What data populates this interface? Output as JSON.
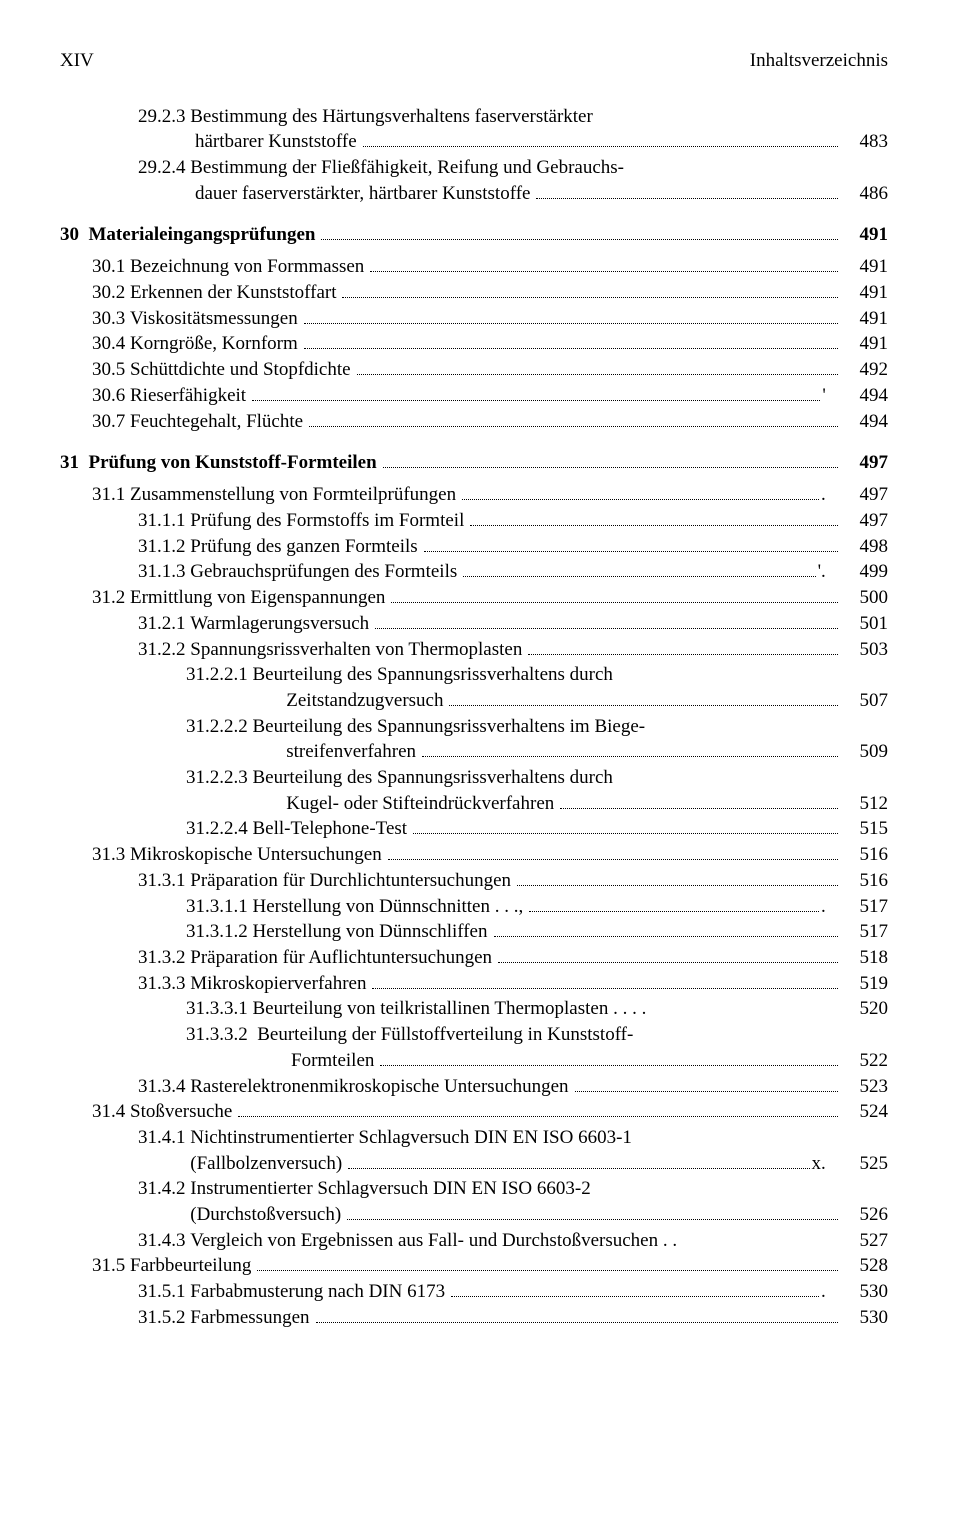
{
  "header": {
    "left": "XIV",
    "right": "Inhaltsverzeichnis"
  },
  "lines": [
    {
      "type": "entry",
      "indent": 2,
      "label": "29.2.3 ",
      "text": "Bestimmung des Härtungsverhaltens faserverstärkter",
      "nopage": true
    },
    {
      "type": "entry",
      "indent": 2,
      "label": "",
      "text": "härtbarer Kunststoffe",
      "contpad": "            ",
      "page": "483"
    },
    {
      "type": "entry",
      "indent": 2,
      "label": "29.2.4 ",
      "text": "Bestimmung der Fließfähigkeit, Reifung und Gebrauchs-",
      "nopage": true
    },
    {
      "type": "entry",
      "indent": 2,
      "label": "",
      "text": "dauer faserverstärkter, härtbarer Kunststoffe",
      "contpad": "            ",
      "page": "486"
    },
    {
      "type": "gap",
      "size": "md"
    },
    {
      "type": "entry",
      "indent": 0,
      "label": "30  ",
      "text": "Materialeingangsprüfungen",
      "page": "491",
      "bold": true
    },
    {
      "type": "gap",
      "size": "sm"
    },
    {
      "type": "entry",
      "indent": 1,
      "label": "30.1 ",
      "text": "Bezeichnung von Formmassen",
      "page": "491"
    },
    {
      "type": "entry",
      "indent": 1,
      "label": "30.2 ",
      "text": "Erkennen der Kunststoffart",
      "page": "491"
    },
    {
      "type": "entry",
      "indent": 1,
      "label": "30.3 ",
      "text": "Viskositätsmessungen",
      "page": "491"
    },
    {
      "type": "entry",
      "indent": 1,
      "label": "30.4 ",
      "text": "Korngröße, Kornform",
      "page": "491"
    },
    {
      "type": "entry",
      "indent": 1,
      "label": "30.5 ",
      "text": "Schüttdichte und Stopfdichte",
      "page": "492"
    },
    {
      "type": "entry",
      "indent": 1,
      "label": "30.6 ",
      "text": "Rieserfähigkeit",
      "page": "494",
      "extra": "'"
    },
    {
      "type": "entry",
      "indent": 1,
      "label": "30.7 ",
      "text": "Feuchtegehalt, Flüchte",
      "page": "494"
    },
    {
      "type": "gap",
      "size": "md"
    },
    {
      "type": "entry",
      "indent": 0,
      "label": "31  ",
      "text": "Prüfung von Kunststoff-Formteilen",
      "page": "497",
      "bold": true
    },
    {
      "type": "gap",
      "size": "sm"
    },
    {
      "type": "entry",
      "indent": 1,
      "label": "31.1 ",
      "text": "Zusammenstellung von Formteilprüfungen",
      "page": "497",
      "extra": "."
    },
    {
      "type": "entry",
      "indent": 3,
      "label": "31.1.1 ",
      "text": "Prüfung des Formstoffs im Formteil",
      "page": "497"
    },
    {
      "type": "entry",
      "indent": 3,
      "label": "31.1.2 ",
      "text": "Prüfung des ganzen Formteils",
      "page": "498"
    },
    {
      "type": "entry",
      "indent": 3,
      "label": "31.1.3 ",
      "text": "Gebrauchsprüfungen des Formteils",
      "page": "499",
      "extra": "'."
    },
    {
      "type": "entry",
      "indent": 1,
      "label": "31.2 ",
      "text": "Ermittlung von Eigenspannungen",
      "page": "500"
    },
    {
      "type": "entry",
      "indent": 3,
      "label": "31.2.1 ",
      "text": "Warmlagerungsversuch",
      "page": "501"
    },
    {
      "type": "entry",
      "indent": 3,
      "label": "31.2.2 ",
      "text": "Spannungsrissverhalten von Thermoplasten",
      "page": "503"
    },
    {
      "type": "entry",
      "indent": 4,
      "label": "31.2.2.1 ",
      "text": "Beurteilung des Spannungsrissverhaltens durch",
      "nopage": true
    },
    {
      "type": "entry",
      "indent": 5,
      "label": "",
      "text": "Zeitstandzugversuch",
      "contpad": "           ",
      "page": "507"
    },
    {
      "type": "entry",
      "indent": 4,
      "label": "31.2.2.2 ",
      "text": "Beurteilung des Spannungsrissverhaltens im Biege-",
      "nopage": true
    },
    {
      "type": "entry",
      "indent": 5,
      "label": "",
      "text": "streifenverfahren",
      "contpad": "           ",
      "page": "509"
    },
    {
      "type": "entry",
      "indent": 4,
      "label": "31.2.2.3 ",
      "text": "Beurteilung des Spannungsrissverhaltens durch",
      "nopage": true
    },
    {
      "type": "entry",
      "indent": 5,
      "label": "",
      "text": "Kugel- oder Stifteindrückverfahren",
      "contpad": "           ",
      "page": "512"
    },
    {
      "type": "entry",
      "indent": 4,
      "label": "31.2.2.4 ",
      "text": "Bell-Telephone-Test",
      "page": "515"
    },
    {
      "type": "entry",
      "indent": 1,
      "label": "31.3 ",
      "text": "Mikroskopische Untersuchungen",
      "page": "516"
    },
    {
      "type": "entry",
      "indent": 3,
      "label": "31.3.1 ",
      "text": "Präparation für Durchlichtuntersuchungen",
      "page": "516"
    },
    {
      "type": "entry",
      "indent": 4,
      "label": "31.3.1.1 ",
      "text": "Herstellung von Dünnschnitten .   .   .,",
      "page": "517",
      "extra": "."
    },
    {
      "type": "entry",
      "indent": 4,
      "label": "31.3.1.2 ",
      "text": "Herstellung von Dünnschliffen",
      "page": "517"
    },
    {
      "type": "entry",
      "indent": 3,
      "label": "31.3.2 ",
      "text": "Präparation für Auflichtuntersuchungen",
      "page": "518"
    },
    {
      "type": "entry",
      "indent": 3,
      "label": "31.3.3 ",
      "text": "Mikroskopierverfahren",
      "page": "519"
    },
    {
      "type": "entry",
      "indent": 4,
      "label": "31.3.3.1 ",
      "text": "Beurteilung von teilkristallinen Thermoplasten     .   .   .   .",
      "page": "520",
      "nodots": true
    },
    {
      "type": "entry",
      "indent": 4,
      "label": "31.3.3.2  ",
      "text": "Beurteilung der Füllstoffverteilung in Kunststoff-",
      "nopage": true
    },
    {
      "type": "entry",
      "indent": 5,
      "label": "",
      "text": "Formteilen",
      "contpad": "            ",
      "page": "522"
    },
    {
      "type": "entry",
      "indent": 3,
      "label": "31.3.4 ",
      "text": "Rasterelektronenmikroskopische Untersuchungen",
      "page": "523"
    },
    {
      "type": "entry",
      "indent": 1,
      "label": "31.4 ",
      "text": "Stoßversuche",
      "page": "524"
    },
    {
      "type": "entry",
      "indent": 3,
      "label": "31.4.1 ",
      "text": "Nichtinstrumentierter Schlagversuch DIN EN ISO 6603-1",
      "nopage": true
    },
    {
      "type": "entry",
      "indent": 3,
      "label": "",
      "text": "(Fallbolzenversuch)",
      "contpad": "           ",
      "page": "525",
      "extra": "x."
    },
    {
      "type": "entry",
      "indent": 3,
      "label": "31.4.2 ",
      "text": "Instrumentierter Schlagversuch DIN EN ISO 6603-2",
      "nopage": true
    },
    {
      "type": "entry",
      "indent": 3,
      "label": "",
      "text": "(Durchstoßversuch)",
      "contpad": "           ",
      "page": "526"
    },
    {
      "type": "entry",
      "indent": 3,
      "label": "31.4.3 ",
      "text": "Vergleich von Ergebnissen aus Fall- und Durchstoßversuchen  .    .",
      "page": "527",
      "nodots": true
    },
    {
      "type": "entry",
      "indent": 1,
      "label": "31.5 ",
      "text": "Farbbeurteilung",
      "page": "528"
    },
    {
      "type": "entry",
      "indent": 3,
      "label": "31.5.1 ",
      "text": "Farbabmusterung nach DIN 6173",
      "page": "530",
      "extra": "."
    },
    {
      "type": "entry",
      "indent": 3,
      "label": "31.5.2 ",
      "text": "Farbmessungen",
      "page": "530"
    }
  ]
}
